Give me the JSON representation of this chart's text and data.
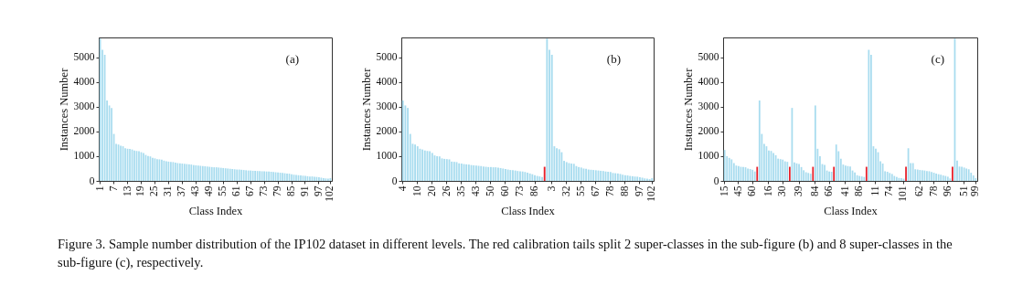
{
  "chart_data": [
    {
      "type": "bar",
      "grid": false,
      "legend": false,
      "xlabel": "Class Index",
      "ylabel": "Instances Number",
      "annotations": [
        "(a)",
        "Figure 3. Sample number distribution of the IP102 dataset in different levels. The red calibration tails split 2 super-classes in the sub-figure (b) and 8 super-classes in the sub-figure (c), respectively."
      ],
      "ylim": [
        0,
        5800
      ],
      "yticks": [
        0,
        1000,
        2000,
        3000,
        4000,
        5000
      ],
      "categories": [
        "1",
        null,
        null,
        null,
        null,
        null,
        "7",
        null,
        null,
        null,
        null,
        null,
        "13",
        null,
        null,
        null,
        null,
        null,
        "19",
        null,
        null,
        null,
        null,
        null,
        "25",
        null,
        null,
        null,
        null,
        null,
        "31",
        null,
        null,
        null,
        null,
        null,
        "37",
        null,
        null,
        null,
        null,
        null,
        "43",
        null,
        null,
        null,
        null,
        null,
        "49",
        null,
        null,
        null,
        null,
        null,
        "55",
        null,
        null,
        null,
        null,
        null,
        "61",
        null,
        null,
        null,
        null,
        null,
        "67",
        null,
        null,
        null,
        null,
        null,
        "73",
        null,
        null,
        null,
        null,
        null,
        "79",
        null,
        null,
        null,
        null,
        null,
        "85",
        null,
        null,
        null,
        null,
        null,
        "91",
        null,
        null,
        null,
        null,
        null,
        "97",
        null,
        null,
        null,
        null,
        "102"
      ],
      "series": [
        {
          "color": "#a8dcef",
          "values": [
            5750,
            5300,
            5100,
            3250,
            3050,
            2950,
            1900,
            1500,
            1470,
            1420,
            1400,
            1320,
            1300,
            1290,
            1270,
            1230,
            1210,
            1200,
            1160,
            1130,
            1050,
            1010,
            990,
            930,
            910,
            880,
            870,
            860,
            820,
            790,
            780,
            770,
            760,
            740,
            720,
            710,
            700,
            690,
            680,
            670,
            660,
            640,
            630,
            620,
            610,
            600,
            590,
            580,
            570,
            560,
            550,
            550,
            540,
            530,
            520,
            510,
            500,
            490,
            480,
            470,
            460,
            460,
            450,
            440,
            430,
            420,
            420,
            410,
            410,
            400,
            400,
            390,
            390,
            380,
            380,
            370,
            360,
            350,
            340,
            330,
            320,
            310,
            300,
            290,
            270,
            250,
            240,
            230,
            220,
            210,
            200,
            190,
            180,
            180,
            170,
            160,
            150,
            130,
            110,
            100,
            90,
            110
          ]
        }
      ]
    },
    {
      "type": "bar",
      "grid": false,
      "legend": false,
      "xlabel": "Class Index",
      "ylabel": "Instances Number",
      "annotations": [
        "(b)"
      ],
      "ylim": [
        0,
        5800
      ],
      "yticks": [
        0,
        1000,
        2000,
        3000,
        4000,
        5000
      ],
      "categories": [
        "4",
        null,
        null,
        null,
        null,
        null,
        "10",
        null,
        null,
        null,
        null,
        null,
        "20",
        null,
        null,
        null,
        null,
        null,
        "26",
        null,
        null,
        null,
        null,
        null,
        "35",
        null,
        null,
        null,
        null,
        null,
        "43",
        null,
        null,
        null,
        null,
        null,
        "50",
        null,
        null,
        null,
        null,
        null,
        "60",
        null,
        null,
        null,
        null,
        null,
        "73",
        null,
        null,
        null,
        null,
        null,
        "86",
        null,
        null,
        null,
        null,
        null,
        null,
        "3",
        null,
        null,
        null,
        null,
        null,
        "32",
        null,
        null,
        null,
        null,
        null,
        "55",
        null,
        null,
        null,
        null,
        null,
        "67",
        null,
        null,
        null,
        null,
        null,
        "78",
        null,
        null,
        null,
        null,
        null,
        "88",
        null,
        null,
        null,
        null,
        null,
        "97",
        null,
        null,
        null,
        null,
        "102"
      ],
      "series": [
        {
          "color": "#a8dcef",
          "values": [
            3250,
            3050,
            2950,
            1900,
            1500,
            1470,
            1400,
            1300,
            1270,
            1230,
            1210,
            1200,
            1130,
            1030,
            1000,
            990,
            910,
            890,
            880,
            870,
            780,
            770,
            760,
            710,
            700,
            680,
            670,
            660,
            640,
            630,
            620,
            610,
            600,
            580,
            570,
            560,
            560,
            550,
            550,
            540,
            520,
            500,
            480,
            460,
            440,
            430,
            420,
            400,
            390,
            380,
            360,
            330,
            300,
            270,
            230,
            200,
            180,
            160,
            null,
            5750,
            5300,
            5100,
            1400,
            1320,
            1280,
            1160,
            810,
            760,
            720,
            700,
            690,
            600,
            560,
            540,
            500,
            490,
            460,
            450,
            440,
            430,
            420,
            410,
            400,
            380,
            370,
            360,
            320,
            310,
            300,
            280,
            250,
            230,
            220,
            200,
            190,
            180,
            170,
            150,
            130,
            100,
            90,
            70,
            110
          ]
        },
        {
          "color": "#e8202a",
          "values": [
            null,
            null,
            null,
            null,
            null,
            null,
            null,
            null,
            null,
            null,
            null,
            null,
            null,
            null,
            null,
            null,
            null,
            null,
            null,
            null,
            null,
            null,
            null,
            null,
            null,
            null,
            null,
            null,
            null,
            null,
            null,
            null,
            null,
            null,
            null,
            null,
            null,
            null,
            null,
            null,
            null,
            null,
            null,
            null,
            null,
            null,
            null,
            null,
            null,
            null,
            null,
            null,
            null,
            null,
            null,
            null,
            null,
            null,
            570,
            null,
            null,
            null,
            null,
            null,
            null,
            null,
            null,
            null,
            null,
            null,
            null,
            null,
            null,
            null,
            null,
            null,
            null,
            null,
            null,
            null,
            null,
            null,
            null,
            null,
            null,
            null,
            null,
            null,
            null,
            null,
            null,
            null,
            null,
            null,
            null,
            null,
            null,
            null,
            null,
            null,
            null,
            null,
            null
          ]
        }
      ]
    },
    {
      "type": "bar",
      "grid": false,
      "legend": false,
      "xlabel": "Class Index",
      "ylabel": "Instances Number",
      "annotations": [
        "(c)"
      ],
      "ylim": [
        0,
        5800
      ],
      "yticks": [
        0,
        1000,
        2000,
        3000,
        4000,
        5000
      ],
      "categories": [
        "15",
        null,
        null,
        null,
        null,
        null,
        "45",
        null,
        null,
        null,
        null,
        null,
        "60",
        null,
        null,
        null,
        null,
        null,
        null,
        "16",
        null,
        null,
        null,
        null,
        null,
        "30",
        null,
        null,
        null,
        null,
        null,
        null,
        "39",
        null,
        null,
        null,
        null,
        null,
        null,
        "84",
        null,
        null,
        null,
        null,
        null,
        "66",
        null,
        null,
        null,
        null,
        null,
        null,
        "41",
        null,
        null,
        null,
        null,
        null,
        "86",
        null,
        null,
        null,
        null,
        null,
        null,
        "11",
        null,
        null,
        null,
        null,
        null,
        "74",
        null,
        null,
        null,
        null,
        null,
        "101",
        null,
        null,
        null,
        null,
        null,
        null,
        "62",
        null,
        null,
        null,
        null,
        null,
        "78",
        null,
        null,
        null,
        null,
        null,
        "96",
        null,
        null,
        null,
        null,
        null,
        null,
        "51",
        null,
        null,
        null,
        null,
        "99"
      ],
      "series": [
        {
          "color": "#a8dcef",
          "values": [
            1250,
            1000,
            930,
            870,
            720,
            620,
            600,
            570,
            560,
            550,
            500,
            480,
            450,
            380,
            null,
            3250,
            1900,
            1500,
            1400,
            1230,
            1210,
            1130,
            1040,
            900,
            880,
            860,
            790,
            770,
            null,
            2950,
            750,
            710,
            680,
            560,
            430,
            350,
            320,
            290,
            null,
            3050,
            1300,
            1000,
            680,
            650,
            420,
            380,
            370,
            null,
            1470,
            1200,
            900,
            660,
            620,
            600,
            580,
            420,
            340,
            230,
            200,
            180,
            160,
            null,
            5300,
            5100,
            1400,
            1300,
            1160,
            790,
            700,
            390,
            370,
            320,
            280,
            200,
            160,
            120,
            110,
            90,
            null,
            1320,
            720,
            720,
            470,
            460,
            440,
            430,
            420,
            400,
            390,
            360,
            330,
            300,
            270,
            250,
            220,
            200,
            170,
            100,
            null,
            5750,
            820,
            580,
            570,
            540,
            500,
            470,
            330,
            220,
            110
          ]
        },
        {
          "color": "#e8202a",
          "values": [
            null,
            null,
            null,
            null,
            null,
            null,
            null,
            null,
            null,
            null,
            null,
            null,
            null,
            null,
            570,
            null,
            null,
            null,
            null,
            null,
            null,
            null,
            null,
            null,
            null,
            null,
            null,
            null,
            570,
            null,
            null,
            null,
            null,
            null,
            null,
            null,
            null,
            null,
            570,
            null,
            null,
            null,
            null,
            null,
            null,
            null,
            null,
            570,
            null,
            null,
            null,
            null,
            null,
            null,
            null,
            null,
            null,
            null,
            null,
            null,
            null,
            570,
            null,
            null,
            null,
            null,
            null,
            null,
            null,
            null,
            null,
            null,
            null,
            null,
            null,
            null,
            null,
            null,
            570,
            null,
            null,
            null,
            null,
            null,
            null,
            null,
            null,
            null,
            null,
            null,
            null,
            null,
            null,
            null,
            null,
            null,
            null,
            null,
            570,
            null,
            null,
            null,
            null,
            null,
            null,
            null,
            null,
            null,
            null
          ]
        }
      ]
    }
  ]
}
